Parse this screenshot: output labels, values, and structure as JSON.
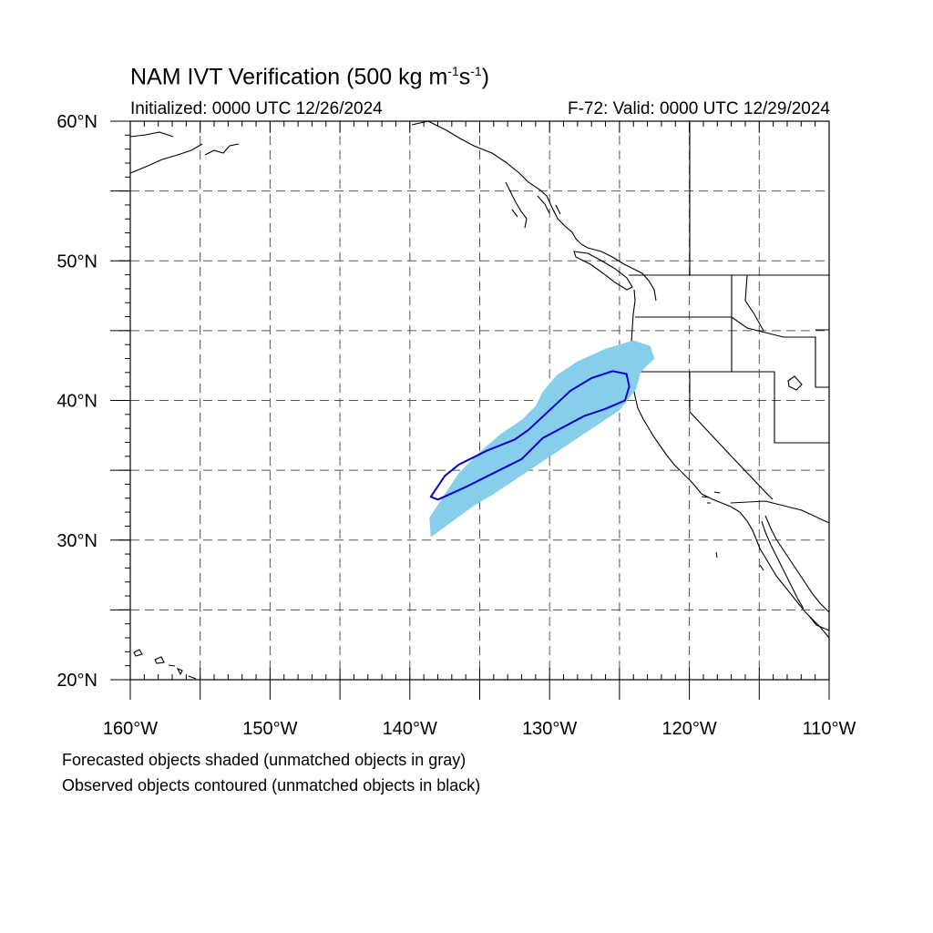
{
  "title": {
    "text_main": "NAM IVT Verification (500 kg m",
    "exp1": "-1",
    "mid": "s",
    "exp2": "-1",
    "close": ")"
  },
  "initialized": "Initialized: 0000 UTC 12/26/2024",
  "valid": "F-72: Valid: 0000 UTC 12/29/2024",
  "notes": {
    "forecast": "Forecasted objects shaded (unmatched objects in gray)",
    "observed": "Observed objects contoured (unmatched objects in black)"
  },
  "colors": {
    "forecast_fill": "#87ceeb",
    "observed_contour": "#0000cd",
    "grid": "#555555",
    "coast": "#000000"
  },
  "map": {
    "lon_range": [
      -160,
      -110
    ],
    "lat_range": [
      20,
      60
    ],
    "grid_interval_deg": 5,
    "x_tick_labels": [
      {
        "lon": -160,
        "label": "160°W"
      },
      {
        "lon": -150,
        "label": "150°W"
      },
      {
        "lon": -140,
        "label": "140°W"
      },
      {
        "lon": -130,
        "label": "130°W"
      },
      {
        "lon": -120,
        "label": "120°W"
      },
      {
        "lon": -110,
        "label": "110°W"
      }
    ],
    "y_tick_labels": [
      {
        "lat": 60,
        "label": "60°N"
      },
      {
        "lat": 50,
        "label": "50°N"
      },
      {
        "lat": 40,
        "label": "40°N"
      },
      {
        "lat": 30,
        "label": "30°N"
      },
      {
        "lat": 20,
        "label": "20°N"
      }
    ],
    "forecast_object": [
      [
        -138.5,
        30.2
      ],
      [
        -137.0,
        31.3
      ],
      [
        -135.5,
        32.4
      ],
      [
        -134.0,
        33.3
      ],
      [
        -132.5,
        34.3
      ],
      [
        -131.0,
        35.3
      ],
      [
        -129.5,
        36.3
      ],
      [
        -128.0,
        37.3
      ],
      [
        -126.5,
        38.3
      ],
      [
        -125.0,
        39.3
      ],
      [
        -123.8,
        40.8
      ],
      [
        -123.5,
        42.0
      ],
      [
        -122.5,
        43.0
      ],
      [
        -122.8,
        43.9
      ],
      [
        -124.0,
        44.3
      ],
      [
        -126.0,
        43.7
      ],
      [
        -128.0,
        42.8
      ],
      [
        -129.5,
        41.8
      ],
      [
        -130.5,
        40.6
      ],
      [
        -131.0,
        39.6
      ],
      [
        -132.0,
        38.6
      ],
      [
        -133.5,
        37.6
      ],
      [
        -135.0,
        36.3
      ],
      [
        -136.5,
        34.8
      ],
      [
        -137.5,
        33.3
      ],
      [
        -138.6,
        31.6
      ]
    ],
    "observed_object": [
      [
        -138.0,
        32.9
      ],
      [
        -136.0,
        33.8
      ],
      [
        -134.0,
        34.8
      ],
      [
        -132.0,
        35.8
      ],
      [
        -130.5,
        37.3
      ],
      [
        -129.0,
        38.1
      ],
      [
        -127.5,
        38.9
      ],
      [
        -126.0,
        39.4
      ],
      [
        -124.6,
        40.0
      ],
      [
        -124.3,
        41.0
      ],
      [
        -124.5,
        41.9
      ],
      [
        -125.5,
        42.1
      ],
      [
        -127.0,
        41.6
      ],
      [
        -128.5,
        40.7
      ],
      [
        -130.0,
        39.3
      ],
      [
        -131.5,
        37.9
      ],
      [
        -132.5,
        37.2
      ],
      [
        -134.5,
        36.4
      ],
      [
        -136.5,
        35.4
      ],
      [
        -137.5,
        34.6
      ],
      [
        -138.5,
        33.1
      ]
    ]
  }
}
